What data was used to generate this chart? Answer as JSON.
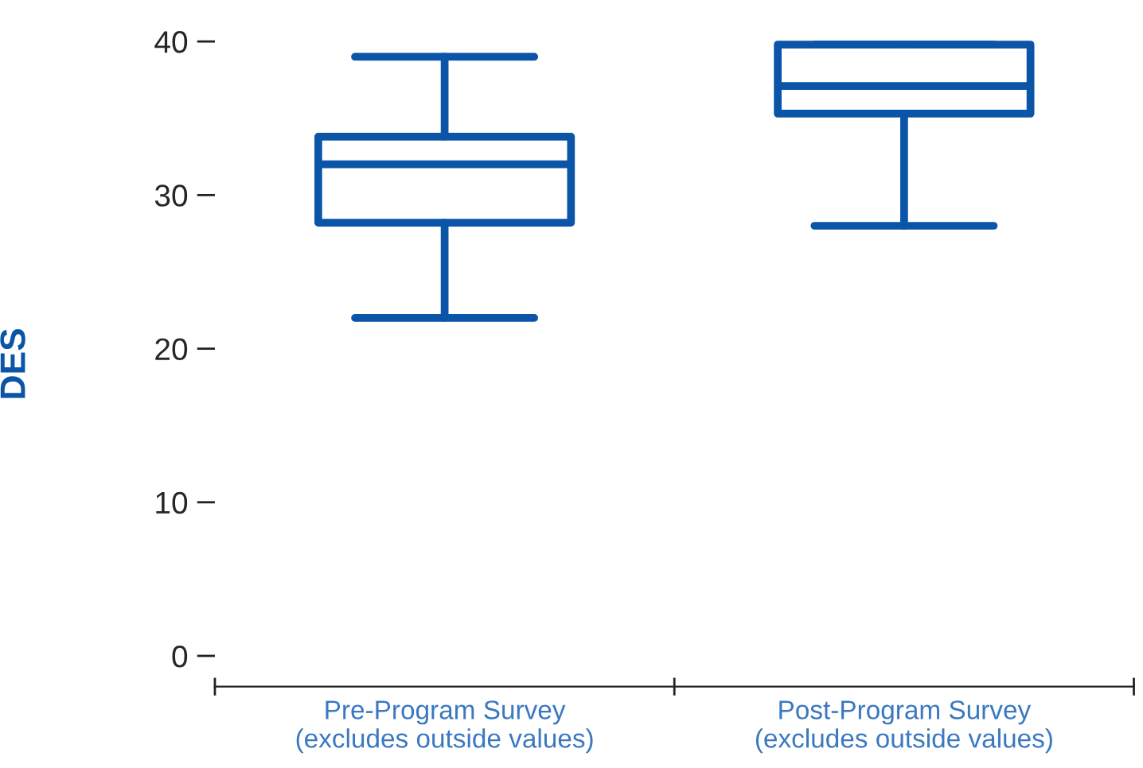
{
  "chart_data": {
    "type": "box",
    "ylabel": "DES",
    "categories": [
      "Pre-Program Survey\n(excludes outside values)",
      "Post-Program Survey\n(excludes outside values)"
    ],
    "boxes": [
      {
        "low": 22.0,
        "q1": 28.2,
        "median": 32.0,
        "q3": 33.8,
        "high": 39.0
      },
      {
        "low": 28.0,
        "q1": 35.3,
        "median": 37.1,
        "q3": 39.8,
        "high": 39.8
      }
    ],
    "color": "#0a55a8",
    "ylim": [
      -2,
      40
    ],
    "yticks": [
      0,
      10,
      20,
      30,
      40
    ],
    "grid": false
  }
}
